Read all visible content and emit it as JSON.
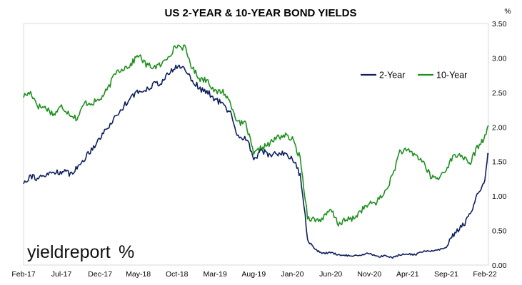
{
  "chart_data": {
    "type": "line",
    "title": "US 2-YEAR & 10-YEAR BOND YIELDS",
    "ylabel": "%",
    "ylim": [
      0,
      3.5
    ],
    "y_ticks": [
      "0.00",
      "0.50",
      "1.00",
      "1.50",
      "2.00",
      "2.50",
      "3.00",
      "3.50"
    ],
    "x_range": [
      "2017-02-01",
      "2022-02-15"
    ],
    "x_ticks": [
      {
        "label": "Feb-17",
        "date": "2017-02-01"
      },
      {
        "label": "Jul-17",
        "date": "2017-07-01"
      },
      {
        "label": "Dec-17",
        "date": "2017-12-01"
      },
      {
        "label": "May-18",
        "date": "2018-05-01"
      },
      {
        "label": "Oct-18",
        "date": "2018-10-01"
      },
      {
        "label": "Mar-19",
        "date": "2019-03-01"
      },
      {
        "label": "Aug-19",
        "date": "2019-08-01"
      },
      {
        "label": "Jan-20",
        "date": "2020-01-01"
      },
      {
        "label": "Jun-20",
        "date": "2020-06-01"
      },
      {
        "label": "Nov-20",
        "date": "2020-11-01"
      },
      {
        "label": "Apr-21",
        "date": "2021-04-01"
      },
      {
        "label": "Sep-21",
        "date": "2021-09-01"
      },
      {
        "label": "Feb-22",
        "date": "2022-02-01"
      }
    ],
    "grid": false,
    "legend_position": "top-right",
    "series": [
      {
        "name": "2-Year",
        "color": "#0d1f5c",
        "points": [
          [
            "2017-02-01",
            1.2
          ],
          [
            "2017-03-01",
            1.3
          ],
          [
            "2017-04-01",
            1.25
          ],
          [
            "2017-05-01",
            1.3
          ],
          [
            "2017-06-01",
            1.35
          ],
          [
            "2017-07-01",
            1.35
          ],
          [
            "2017-08-01",
            1.33
          ],
          [
            "2017-09-01",
            1.4
          ],
          [
            "2017-10-01",
            1.55
          ],
          [
            "2017-11-01",
            1.7
          ],
          [
            "2017-12-01",
            1.85
          ],
          [
            "2018-01-01",
            2.0
          ],
          [
            "2018-02-01",
            2.15
          ],
          [
            "2018-03-01",
            2.28
          ],
          [
            "2018-04-01",
            2.45
          ],
          [
            "2018-05-01",
            2.5
          ],
          [
            "2018-06-01",
            2.55
          ],
          [
            "2018-07-01",
            2.62
          ],
          [
            "2018-08-01",
            2.65
          ],
          [
            "2018-09-01",
            2.78
          ],
          [
            "2018-10-01",
            2.88
          ],
          [
            "2018-11-01",
            2.85
          ],
          [
            "2018-12-01",
            2.68
          ],
          [
            "2019-01-01",
            2.55
          ],
          [
            "2019-02-01",
            2.5
          ],
          [
            "2019-03-01",
            2.4
          ],
          [
            "2019-04-01",
            2.33
          ],
          [
            "2019-05-01",
            2.2
          ],
          [
            "2019-06-01",
            1.85
          ],
          [
            "2019-07-01",
            1.85
          ],
          [
            "2019-08-01",
            1.55
          ],
          [
            "2019-09-01",
            1.65
          ],
          [
            "2019-10-01",
            1.6
          ],
          [
            "2019-11-01",
            1.62
          ],
          [
            "2019-12-01",
            1.62
          ],
          [
            "2020-01-01",
            1.55
          ],
          [
            "2020-02-01",
            1.3
          ],
          [
            "2020-03-01",
            0.4
          ],
          [
            "2020-04-01",
            0.22
          ],
          [
            "2020-05-01",
            0.17
          ],
          [
            "2020-06-01",
            0.18
          ],
          [
            "2020-07-01",
            0.15
          ],
          [
            "2020-08-01",
            0.14
          ],
          [
            "2020-09-01",
            0.13
          ],
          [
            "2020-10-01",
            0.15
          ],
          [
            "2020-11-01",
            0.17
          ],
          [
            "2020-12-01",
            0.12
          ],
          [
            "2021-01-01",
            0.13
          ],
          [
            "2021-02-01",
            0.11
          ],
          [
            "2021-03-01",
            0.15
          ],
          [
            "2021-04-01",
            0.16
          ],
          [
            "2021-05-01",
            0.15
          ],
          [
            "2021-06-01",
            0.2
          ],
          [
            "2021-07-01",
            0.2
          ],
          [
            "2021-08-01",
            0.22
          ],
          [
            "2021-09-01",
            0.25
          ],
          [
            "2021-10-01",
            0.45
          ],
          [
            "2021-11-01",
            0.55
          ],
          [
            "2021-12-01",
            0.7
          ],
          [
            "2022-01-01",
            1.0
          ],
          [
            "2022-01-20",
            1.15
          ],
          [
            "2022-02-01",
            1.2
          ],
          [
            "2022-02-10",
            1.55
          ],
          [
            "2022-02-15",
            1.6
          ]
        ]
      },
      {
        "name": "10-Year",
        "color": "#1e8f1e",
        "points": [
          [
            "2017-02-01",
            2.45
          ],
          [
            "2017-03-01",
            2.5
          ],
          [
            "2017-04-01",
            2.3
          ],
          [
            "2017-05-01",
            2.28
          ],
          [
            "2017-06-01",
            2.18
          ],
          [
            "2017-07-01",
            2.3
          ],
          [
            "2017-08-01",
            2.2
          ],
          [
            "2017-09-01",
            2.12
          ],
          [
            "2017-10-01",
            2.35
          ],
          [
            "2017-11-01",
            2.35
          ],
          [
            "2017-12-01",
            2.4
          ],
          [
            "2018-01-01",
            2.55
          ],
          [
            "2018-02-01",
            2.8
          ],
          [
            "2018-03-01",
            2.85
          ],
          [
            "2018-04-01",
            2.9
          ],
          [
            "2018-05-01",
            3.05
          ],
          [
            "2018-06-01",
            2.9
          ],
          [
            "2018-07-01",
            2.87
          ],
          [
            "2018-08-01",
            2.9
          ],
          [
            "2018-09-01",
            3.05
          ],
          [
            "2018-10-01",
            3.18
          ],
          [
            "2018-11-01",
            3.15
          ],
          [
            "2018-12-01",
            2.85
          ],
          [
            "2019-01-01",
            2.7
          ],
          [
            "2019-02-01",
            2.68
          ],
          [
            "2019-03-01",
            2.5
          ],
          [
            "2019-04-01",
            2.52
          ],
          [
            "2019-05-01",
            2.35
          ],
          [
            "2019-06-01",
            2.05
          ],
          [
            "2019-07-01",
            2.05
          ],
          [
            "2019-08-01",
            1.6
          ],
          [
            "2019-09-01",
            1.7
          ],
          [
            "2019-10-01",
            1.75
          ],
          [
            "2019-11-01",
            1.85
          ],
          [
            "2019-12-01",
            1.88
          ],
          [
            "2020-01-01",
            1.82
          ],
          [
            "2020-02-01",
            1.55
          ],
          [
            "2020-03-01",
            0.7
          ],
          [
            "2020-04-01",
            0.65
          ],
          [
            "2020-05-01",
            0.67
          ],
          [
            "2020-06-01",
            0.8
          ],
          [
            "2020-07-01",
            0.6
          ],
          [
            "2020-08-01",
            0.65
          ],
          [
            "2020-09-01",
            0.68
          ],
          [
            "2020-10-01",
            0.8
          ],
          [
            "2020-11-01",
            0.88
          ],
          [
            "2020-12-01",
            0.92
          ],
          [
            "2021-01-01",
            1.05
          ],
          [
            "2021-02-01",
            1.3
          ],
          [
            "2021-03-01",
            1.65
          ],
          [
            "2021-04-01",
            1.65
          ],
          [
            "2021-05-01",
            1.6
          ],
          [
            "2021-06-01",
            1.5
          ],
          [
            "2021-07-01",
            1.28
          ],
          [
            "2021-08-01",
            1.25
          ],
          [
            "2021-09-01",
            1.4
          ],
          [
            "2021-10-01",
            1.58
          ],
          [
            "2021-11-01",
            1.6
          ],
          [
            "2021-12-01",
            1.45
          ],
          [
            "2022-01-01",
            1.7
          ],
          [
            "2022-01-20",
            1.8
          ],
          [
            "2022-02-01",
            1.85
          ],
          [
            "2022-02-10",
            1.95
          ],
          [
            "2022-02-15",
            2.02
          ]
        ]
      }
    ]
  },
  "logo": {
    "text": "yieldreport",
    "symbol": "%",
    "colors": {
      "top": "#2e8b2e",
      "bottom": "#c8102e"
    }
  }
}
